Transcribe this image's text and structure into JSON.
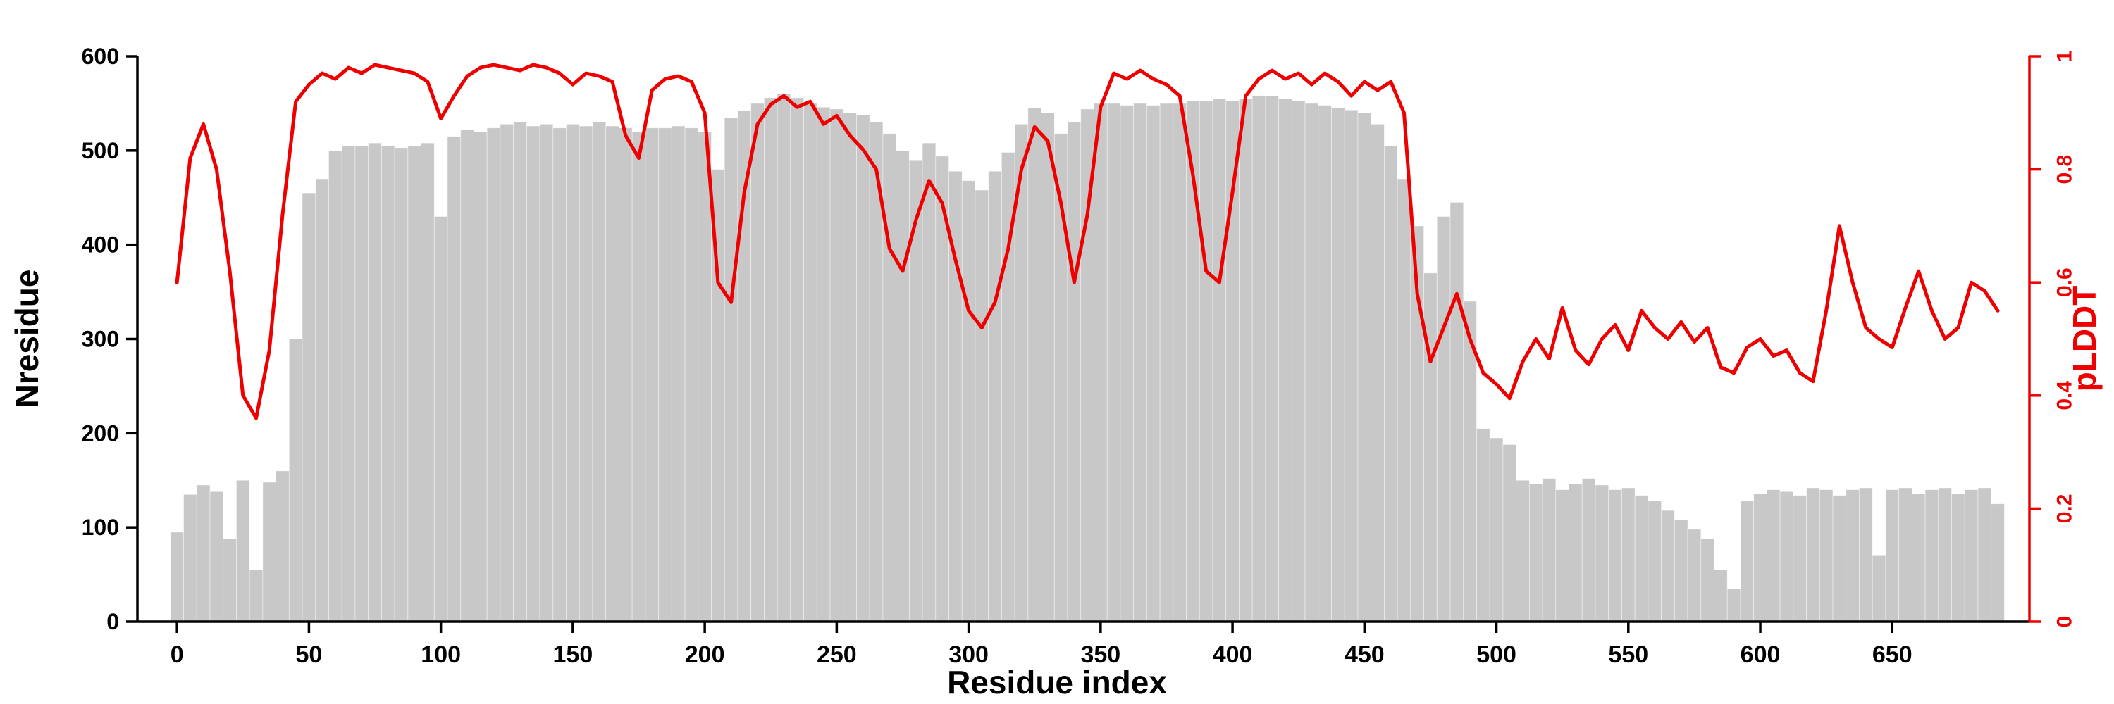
{
  "figure": {
    "xlabel": "Residue index",
    "ylabel_left": "Nresidue",
    "ylabel_right": "pLDDT",
    "colors": {
      "bars": "#c8c8c8",
      "line": "#ee0000",
      "axis": "#000000",
      "background": "#ffffff"
    }
  },
  "chart_data": {
    "type": "composite",
    "title": "",
    "xlabel": "Residue index",
    "grid": false,
    "legend": "none",
    "x": [
      0,
      5,
      10,
      15,
      20,
      25,
      30,
      35,
      40,
      45,
      50,
      55,
      60,
      65,
      70,
      75,
      80,
      85,
      90,
      95,
      100,
      105,
      110,
      115,
      120,
      125,
      130,
      135,
      140,
      145,
      150,
      155,
      160,
      165,
      170,
      175,
      180,
      185,
      190,
      195,
      200,
      205,
      210,
      215,
      220,
      225,
      230,
      235,
      240,
      245,
      250,
      255,
      260,
      265,
      270,
      275,
      280,
      285,
      290,
      295,
      300,
      305,
      310,
      315,
      320,
      325,
      330,
      335,
      340,
      345,
      350,
      355,
      360,
      365,
      370,
      375,
      380,
      385,
      390,
      395,
      400,
      405,
      410,
      415,
      420,
      425,
      430,
      435,
      440,
      445,
      450,
      455,
      460,
      465,
      470,
      475,
      480,
      485,
      490,
      495,
      500,
      505,
      510,
      515,
      520,
      525,
      530,
      535,
      540,
      545,
      550,
      555,
      560,
      565,
      570,
      575,
      580,
      585,
      590,
      595,
      600,
      605,
      610,
      615,
      620,
      625,
      630,
      635,
      640,
      645,
      650,
      655,
      660,
      665,
      670,
      675,
      680,
      685,
      690
    ],
    "series": [
      {
        "name": "Nresidue",
        "type": "bar-area",
        "y_axis": "left",
        "color": "#c8c8c8",
        "values": [
          95,
          135,
          145,
          138,
          88,
          150,
          55,
          148,
          160,
          300,
          455,
          470,
          500,
          505,
          505,
          508,
          505,
          503,
          505,
          508,
          430,
          515,
          522,
          520,
          524,
          528,
          530,
          526,
          528,
          524,
          528,
          526,
          530,
          526,
          524,
          520,
          524,
          524,
          526,
          524,
          520,
          480,
          535,
          542,
          550,
          556,
          560,
          556,
          550,
          546,
          544,
          540,
          538,
          530,
          518,
          500,
          490,
          508,
          494,
          478,
          468,
          458,
          478,
          498,
          528,
          545,
          540,
          518,
          530,
          544,
          550,
          550,
          548,
          550,
          548,
          550,
          550,
          553,
          553,
          555,
          553,
          555,
          558,
          558,
          555,
          553,
          550,
          548,
          545,
          543,
          540,
          528,
          505,
          470,
          420,
          370,
          430,
          445,
          340,
          205,
          195,
          188,
          150,
          146,
          152,
          140,
          146,
          152,
          145,
          140,
          142,
          134,
          128,
          118,
          108,
          98,
          88,
          55,
          35,
          128,
          136,
          140,
          138,
          134,
          142,
          140,
          134,
          140,
          142,
          70,
          140,
          142,
          136,
          140,
          142,
          136,
          140,
          142,
          125
        ]
      },
      {
        "name": "pLDDT",
        "type": "line",
        "y_axis": "right",
        "color": "#ee0000",
        "values": [
          0.6,
          0.82,
          0.88,
          0.8,
          0.62,
          0.4,
          0.36,
          0.48,
          0.72,
          0.92,
          0.95,
          0.97,
          0.96,
          0.98,
          0.97,
          0.985,
          0.98,
          0.975,
          0.97,
          0.955,
          0.89,
          0.93,
          0.965,
          0.98,
          0.985,
          0.98,
          0.975,
          0.985,
          0.98,
          0.97,
          0.95,
          0.97,
          0.965,
          0.955,
          0.86,
          0.82,
          0.94,
          0.96,
          0.965,
          0.955,
          0.9,
          0.6,
          0.565,
          0.76,
          0.88,
          0.915,
          0.93,
          0.91,
          0.92,
          0.88,
          0.895,
          0.86,
          0.835,
          0.8,
          0.66,
          0.62,
          0.71,
          0.78,
          0.74,
          0.64,
          0.55,
          0.52,
          0.565,
          0.66,
          0.8,
          0.875,
          0.85,
          0.74,
          0.6,
          0.72,
          0.91,
          0.97,
          0.96,
          0.975,
          0.96,
          0.95,
          0.93,
          0.79,
          0.62,
          0.6,
          0.76,
          0.93,
          0.96,
          0.975,
          0.96,
          0.97,
          0.95,
          0.97,
          0.955,
          0.93,
          0.955,
          0.94,
          0.955,
          0.9,
          0.58,
          0.46,
          0.52,
          0.58,
          0.5,
          0.44,
          0.42,
          0.395,
          0.46,
          0.5,
          0.465,
          0.555,
          0.48,
          0.455,
          0.5,
          0.525,
          0.48,
          0.55,
          0.52,
          0.5,
          0.53,
          0.495,
          0.52,
          0.45,
          0.44,
          0.485,
          0.5,
          0.47,
          0.48,
          0.44,
          0.425,
          0.55,
          0.7,
          0.6,
          0.52,
          0.5,
          0.485,
          0.555,
          0.62,
          0.55,
          0.5,
          0.52,
          0.6,
          0.585,
          0.55
        ]
      }
    ],
    "x_axis": {
      "ticks": [
        0,
        50,
        100,
        150,
        200,
        250,
        300,
        350,
        400,
        450,
        500,
        550,
        600,
        650
      ],
      "range": [
        -15,
        702
      ]
    },
    "y_axis_left": {
      "label": "Nresidue",
      "ticks": [
        0,
        100,
        200,
        300,
        400,
        500,
        600
      ],
      "range": [
        0,
        600
      ]
    },
    "y_axis_right": {
      "label": "pLDDT",
      "ticks": [
        0,
        0.2,
        0.4,
        0.6,
        0.8,
        1
      ],
      "range": [
        0,
        1
      ]
    }
  }
}
